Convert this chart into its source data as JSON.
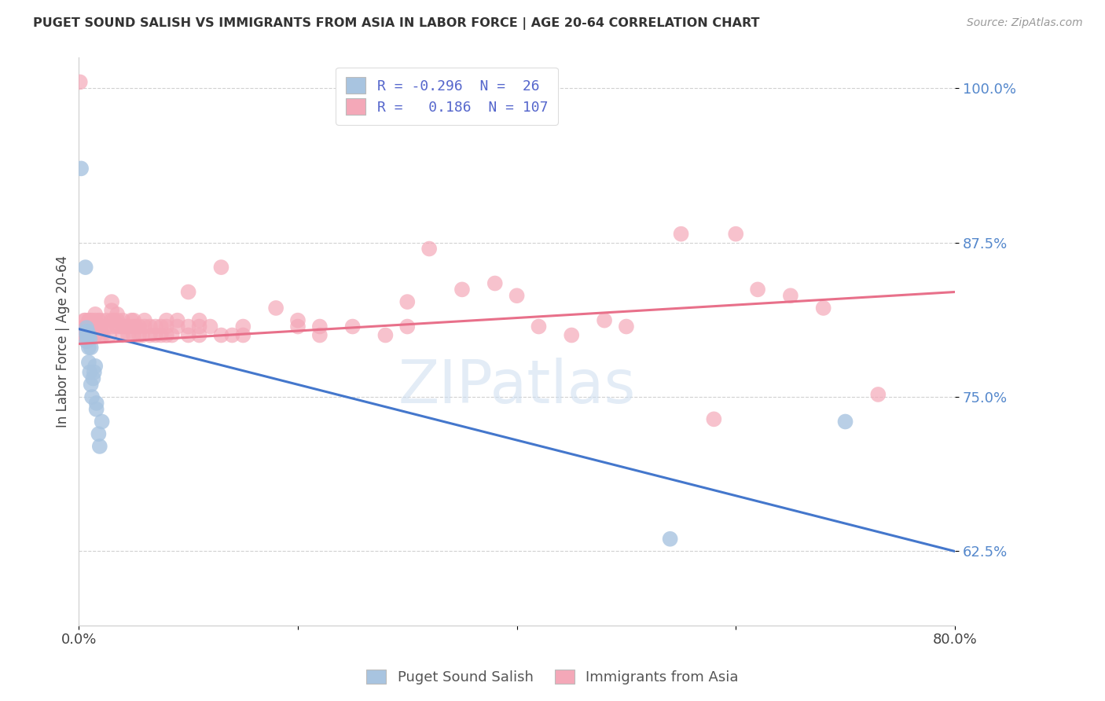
{
  "title": "PUGET SOUND SALISH VS IMMIGRANTS FROM ASIA IN LABOR FORCE | AGE 20-64 CORRELATION CHART",
  "source": "Source: ZipAtlas.com",
  "ylabel": "In Labor Force | Age 20-64",
  "ytick_vals": [
    0.625,
    0.75,
    0.875,
    1.0
  ],
  "xlim": [
    0.0,
    0.8
  ],
  "ylim": [
    0.565,
    1.025
  ],
  "blue_color": "#a8c4e0",
  "pink_color": "#f4a8b8",
  "blue_line_color": "#4477cc",
  "pink_line_color": "#e8708a",
  "watermark": "ZIPatlas",
  "blue_line_y0": 0.805,
  "blue_line_y1": 0.625,
  "pink_line_y0": 0.793,
  "pink_line_y1": 0.835,
  "blue_points": [
    [
      0.002,
      0.935
    ],
    [
      0.006,
      0.855
    ],
    [
      0.007,
      0.795
    ],
    [
      0.007,
      0.8
    ],
    [
      0.007,
      0.803
    ],
    [
      0.007,
      0.806
    ],
    [
      0.008,
      0.8
    ],
    [
      0.008,
      0.803
    ],
    [
      0.009,
      0.8
    ],
    [
      0.009,
      0.79
    ],
    [
      0.009,
      0.778
    ],
    [
      0.01,
      0.797
    ],
    [
      0.01,
      0.77
    ],
    [
      0.011,
      0.79
    ],
    [
      0.011,
      0.76
    ],
    [
      0.012,
      0.75
    ],
    [
      0.013,
      0.765
    ],
    [
      0.014,
      0.77
    ],
    [
      0.015,
      0.775
    ],
    [
      0.016,
      0.745
    ],
    [
      0.016,
      0.74
    ],
    [
      0.018,
      0.72
    ],
    [
      0.019,
      0.71
    ],
    [
      0.021,
      0.73
    ],
    [
      0.54,
      0.635
    ],
    [
      0.7,
      0.73
    ]
  ],
  "pink_points": [
    [
      0.001,
      1.005
    ],
    [
      0.003,
      0.8
    ],
    [
      0.003,
      0.805
    ],
    [
      0.004,
      0.8
    ],
    [
      0.004,
      0.805
    ],
    [
      0.005,
      0.8
    ],
    [
      0.005,
      0.807
    ],
    [
      0.005,
      0.812
    ],
    [
      0.006,
      0.8
    ],
    [
      0.006,
      0.807
    ],
    [
      0.006,
      0.812
    ],
    [
      0.007,
      0.8
    ],
    [
      0.007,
      0.807
    ],
    [
      0.008,
      0.8
    ],
    [
      0.008,
      0.807
    ],
    [
      0.009,
      0.812
    ],
    [
      0.01,
      0.8
    ],
    [
      0.01,
      0.807
    ],
    [
      0.01,
      0.812
    ],
    [
      0.012,
      0.807
    ],
    [
      0.012,
      0.812
    ],
    [
      0.013,
      0.807
    ],
    [
      0.015,
      0.8
    ],
    [
      0.015,
      0.807
    ],
    [
      0.015,
      0.812
    ],
    [
      0.015,
      0.817
    ],
    [
      0.018,
      0.807
    ],
    [
      0.018,
      0.812
    ],
    [
      0.02,
      0.8
    ],
    [
      0.02,
      0.807
    ],
    [
      0.02,
      0.812
    ],
    [
      0.022,
      0.8
    ],
    [
      0.025,
      0.807
    ],
    [
      0.025,
      0.812
    ],
    [
      0.028,
      0.8
    ],
    [
      0.03,
      0.807
    ],
    [
      0.03,
      0.812
    ],
    [
      0.03,
      0.82
    ],
    [
      0.03,
      0.827
    ],
    [
      0.032,
      0.812
    ],
    [
      0.035,
      0.807
    ],
    [
      0.035,
      0.812
    ],
    [
      0.035,
      0.817
    ],
    [
      0.038,
      0.807
    ],
    [
      0.04,
      0.8
    ],
    [
      0.04,
      0.807
    ],
    [
      0.04,
      0.812
    ],
    [
      0.042,
      0.807
    ],
    [
      0.045,
      0.8
    ],
    [
      0.045,
      0.807
    ],
    [
      0.048,
      0.812
    ],
    [
      0.05,
      0.8
    ],
    [
      0.05,
      0.807
    ],
    [
      0.05,
      0.812
    ],
    [
      0.052,
      0.807
    ],
    [
      0.055,
      0.8
    ],
    [
      0.055,
      0.807
    ],
    [
      0.058,
      0.8
    ],
    [
      0.06,
      0.807
    ],
    [
      0.06,
      0.812
    ],
    [
      0.065,
      0.8
    ],
    [
      0.065,
      0.807
    ],
    [
      0.07,
      0.8
    ],
    [
      0.07,
      0.807
    ],
    [
      0.075,
      0.8
    ],
    [
      0.075,
      0.807
    ],
    [
      0.08,
      0.8
    ],
    [
      0.08,
      0.807
    ],
    [
      0.08,
      0.812
    ],
    [
      0.085,
      0.8
    ],
    [
      0.09,
      0.807
    ],
    [
      0.09,
      0.812
    ],
    [
      0.1,
      0.8
    ],
    [
      0.1,
      0.807
    ],
    [
      0.1,
      0.835
    ],
    [
      0.11,
      0.8
    ],
    [
      0.11,
      0.807
    ],
    [
      0.11,
      0.812
    ],
    [
      0.12,
      0.807
    ],
    [
      0.13,
      0.8
    ],
    [
      0.13,
      0.855
    ],
    [
      0.14,
      0.8
    ],
    [
      0.15,
      0.8
    ],
    [
      0.15,
      0.807
    ],
    [
      0.18,
      0.822
    ],
    [
      0.2,
      0.812
    ],
    [
      0.2,
      0.807
    ],
    [
      0.22,
      0.8
    ],
    [
      0.22,
      0.807
    ],
    [
      0.25,
      0.807
    ],
    [
      0.28,
      0.8
    ],
    [
      0.3,
      0.807
    ],
    [
      0.3,
      0.827
    ],
    [
      0.32,
      0.87
    ],
    [
      0.35,
      0.837
    ],
    [
      0.38,
      0.842
    ],
    [
      0.4,
      0.832
    ],
    [
      0.42,
      0.807
    ],
    [
      0.45,
      0.8
    ],
    [
      0.48,
      0.812
    ],
    [
      0.5,
      0.807
    ],
    [
      0.55,
      0.882
    ],
    [
      0.58,
      0.732
    ],
    [
      0.6,
      0.882
    ],
    [
      0.62,
      0.837
    ],
    [
      0.65,
      0.832
    ],
    [
      0.68,
      0.822
    ],
    [
      0.73,
      0.752
    ]
  ]
}
